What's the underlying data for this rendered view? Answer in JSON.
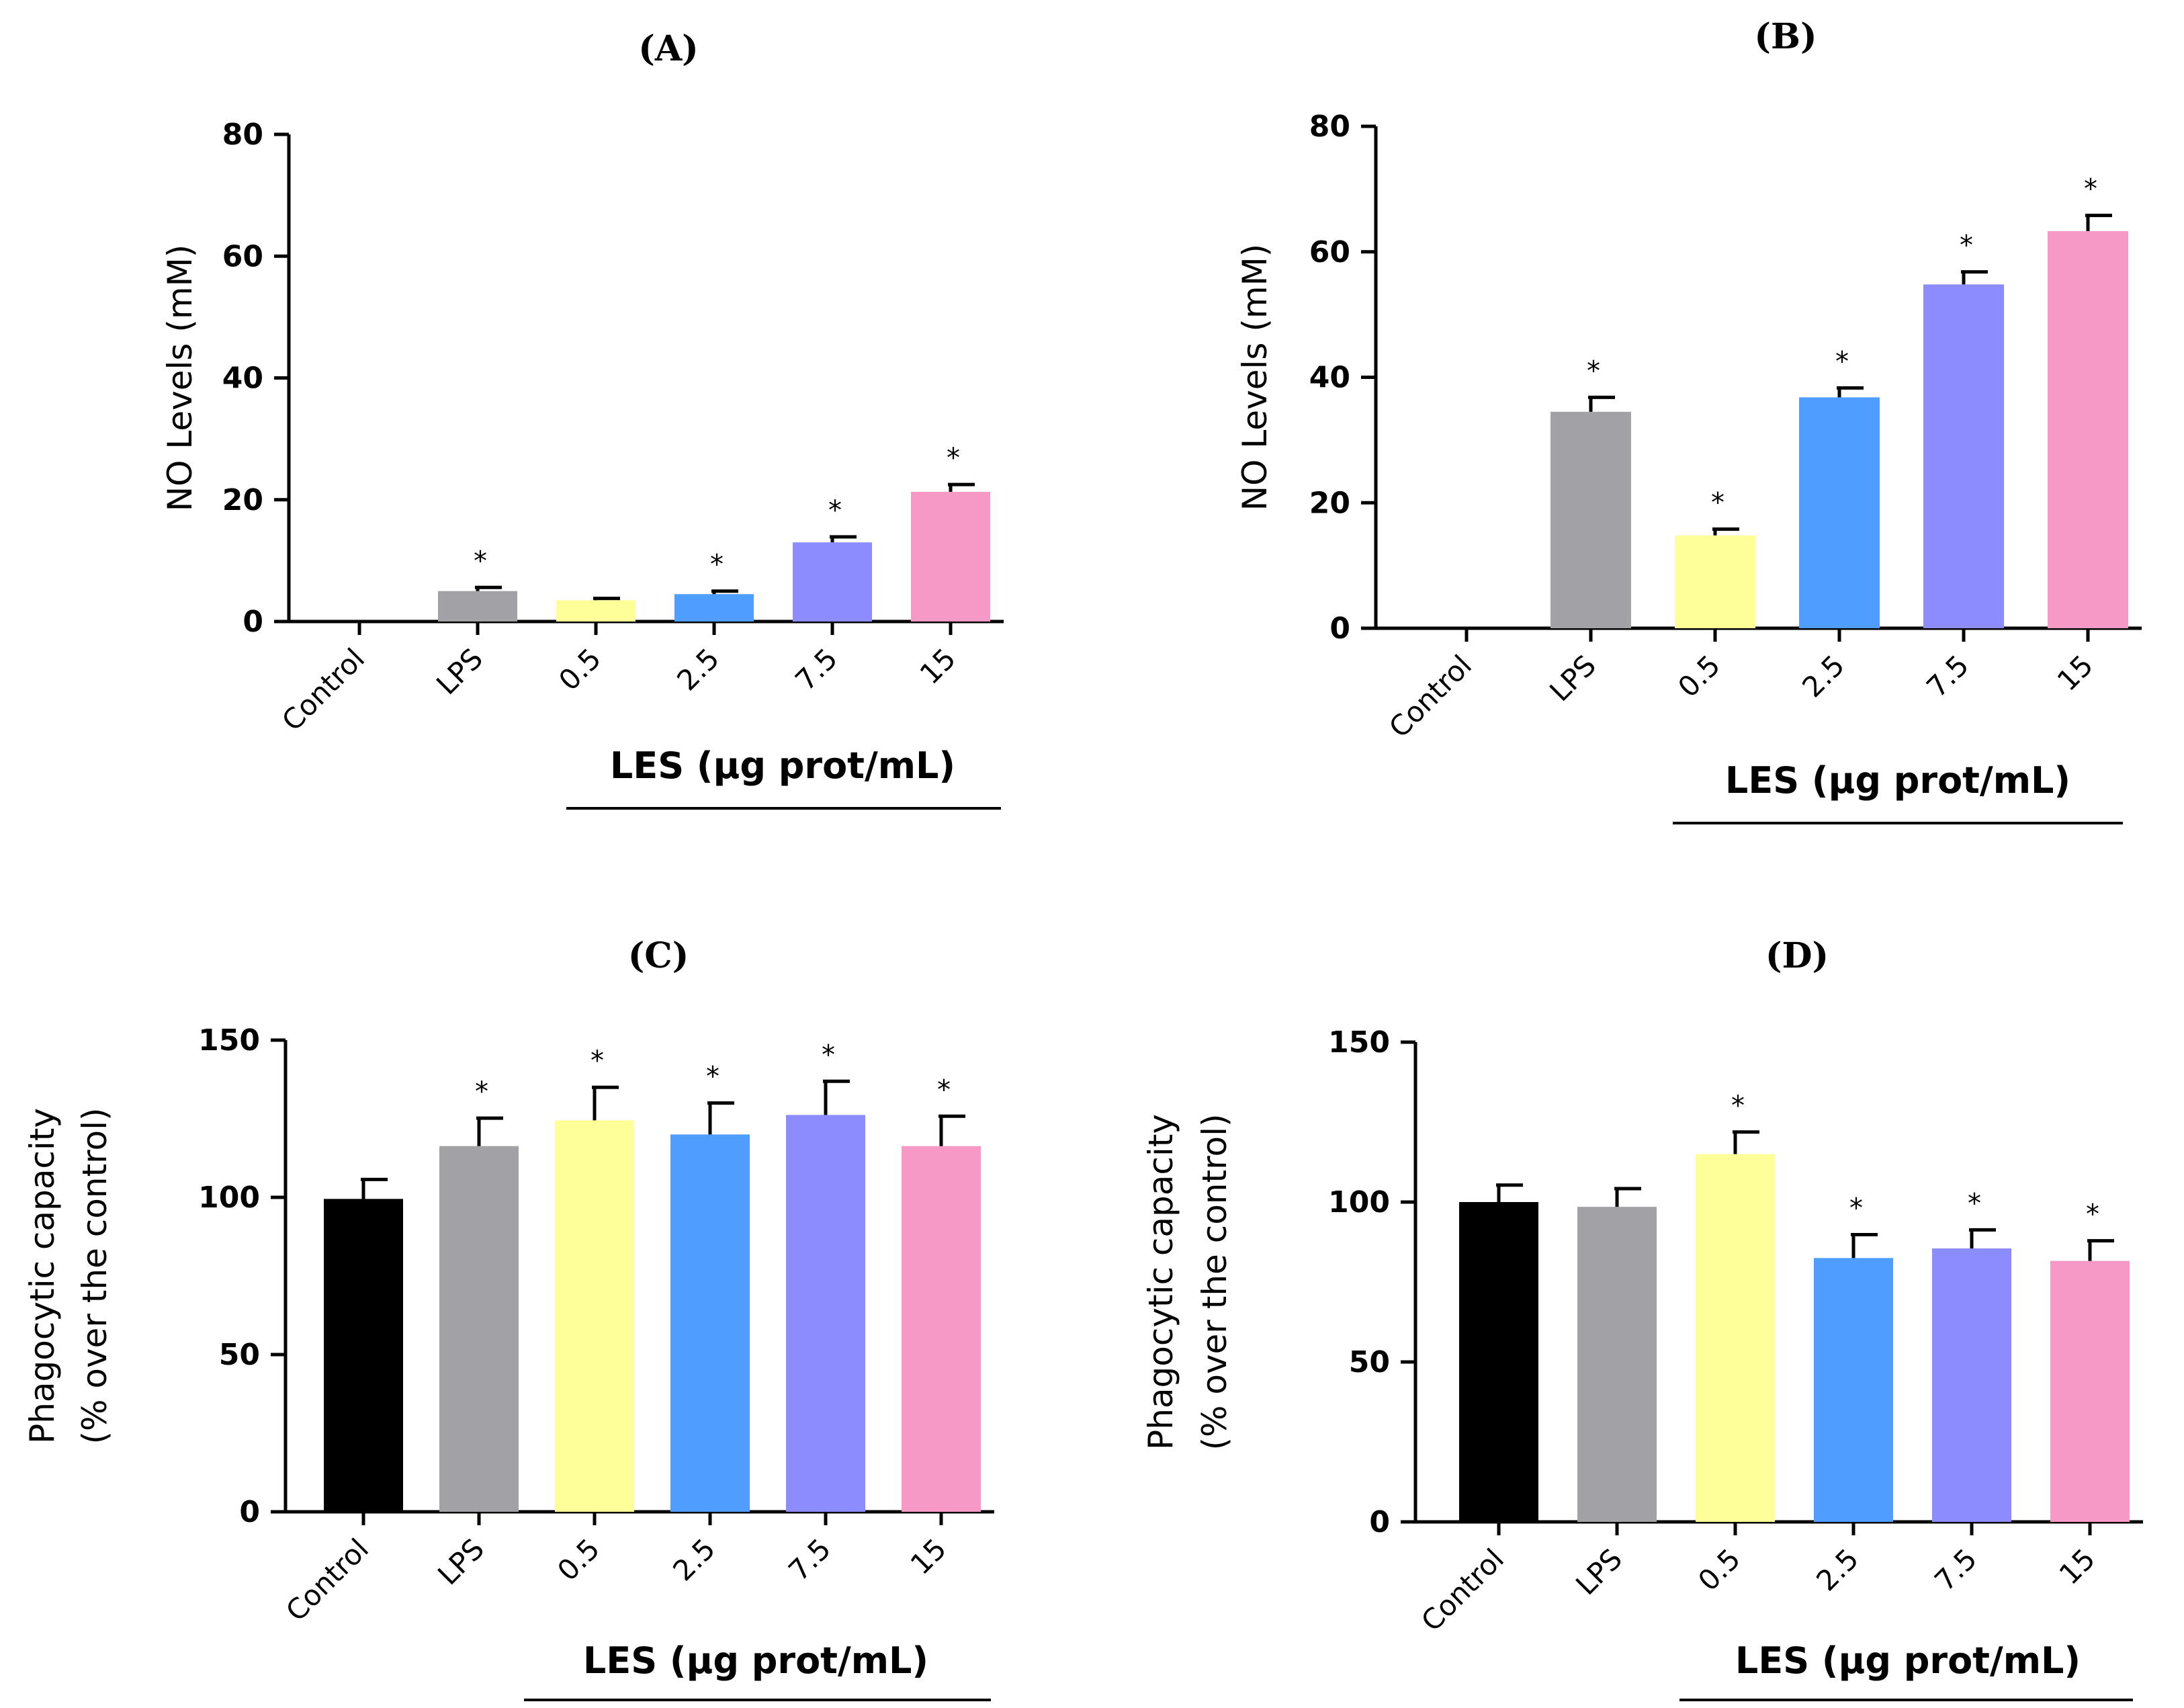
{
  "colors": {
    "Control": "#000000",
    "LPS": "#a1a1a6",
    "0.5": "#ffff99",
    "2.5": "#4f9dff",
    "7.5": "#8c8cff",
    "15": "#f799c6"
  },
  "chart_data": [
    {
      "type": "bar",
      "panel": "(A)",
      "title": "(A)",
      "categories": [
        "Control",
        "LPS",
        "0.5",
        "2.5",
        "7.5",
        "15"
      ],
      "values": [
        0,
        5,
        3.5,
        4.5,
        13,
        21.3
      ],
      "errors": [
        0,
        0.6,
        0.3,
        0.5,
        0.9,
        1.2
      ],
      "significance": [
        "",
        "*",
        "",
        "*",
        "*",
        "*"
      ],
      "ylabel": "NO Levels (mM)",
      "ylim": [
        0,
        80
      ],
      "yticks": [
        0,
        20,
        40,
        60,
        80
      ],
      "group_label": "LES (µg prot/mL)"
    },
    {
      "type": "bar",
      "panel": "(B)",
      "title": "(B)",
      "categories": [
        "Control",
        "LPS",
        "0.5",
        "2.5",
        "7.5",
        "15"
      ],
      "values": [
        0,
        34.5,
        14.8,
        36.8,
        54.8,
        63.3
      ],
      "errors": [
        0,
        2.3,
        1.0,
        1.5,
        2.0,
        2.5
      ],
      "significance": [
        "",
        "*",
        "*",
        "*",
        "*",
        "*"
      ],
      "ylabel": "NO Levels (mM)",
      "ylim": [
        0,
        80
      ],
      "yticks": [
        0,
        20,
        40,
        60,
        80
      ],
      "group_label": "LES (µg prot/mL)"
    },
    {
      "type": "bar",
      "panel": "(C)",
      "title": "(C)",
      "categories": [
        "Control",
        "LPS",
        "0.5",
        "2.5",
        "7.5",
        "15"
      ],
      "values": [
        99.5,
        116.3,
        124.5,
        120,
        126.2,
        116.3
      ],
      "errors": [
        6.2,
        8.9,
        10.5,
        10.0,
        10.7,
        9.5
      ],
      "significance": [
        "",
        "*",
        "*",
        "*",
        "*",
        "*"
      ],
      "ylabel": "Phagocytic capacity",
      "ylabel2": "(% over the control)",
      "ylim": [
        0,
        150
      ],
      "yticks": [
        0,
        50,
        100,
        150
      ],
      "group_label": "LES (µg prot/mL)"
    },
    {
      "type": "bar",
      "panel": "(D)",
      "title": "(D)",
      "categories": [
        "Control",
        "LPS",
        "0.5",
        "2.5",
        "7.5",
        "15"
      ],
      "values": [
        100,
        98.5,
        115,
        82.5,
        85.5,
        81.6
      ],
      "errors": [
        5.3,
        5.7,
        6.9,
        7.3,
        5.8,
        6.3
      ],
      "significance": [
        "",
        "",
        "*",
        "*",
        "*",
        "*"
      ],
      "ylabel": "Phagocytic capacity",
      "ylabel2": "(% over the control)",
      "ylim": [
        0,
        150
      ],
      "yticks": [
        0,
        50,
        100,
        150
      ],
      "group_label": "LES (µg prot/mL)"
    }
  ]
}
